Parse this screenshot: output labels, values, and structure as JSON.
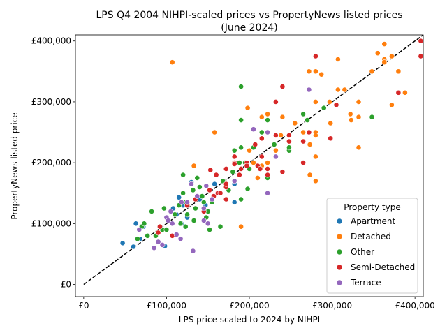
{
  "chart_data": {
    "type": "scatter",
    "title_lines": [
      "LPS Q4 2004 NIHPI-scaled prices vs PropertyNews listed prices",
      "(June 2024)"
    ],
    "xlabel": "LPS price scaled to 2024 by NIHPI",
    "ylabel": "PropertyNews listed price",
    "xlim": [
      -10000,
      410000
    ],
    "ylim": [
      -20000,
      410000
    ],
    "xticks": [
      0,
      100000,
      200000,
      300000,
      400000
    ],
    "yticks": [
      0,
      100000,
      200000,
      300000,
      400000
    ],
    "xtick_labels": [
      "£0",
      "£100,000",
      "£200,000",
      "£300,000",
      "£400,000"
    ],
    "ytick_labels": [
      "£0",
      "£100,000",
      "£200,000",
      "£300,000",
      "£400,000"
    ],
    "reference_line": {
      "style": "dashed",
      "color": "#000000",
      "from": [
        0,
        0
      ],
      "to": [
        410000,
        410000
      ]
    },
    "grid": false,
    "legend": {
      "title": "Property type",
      "placement": "lower-right"
    },
    "series": [
      {
        "name": "Apartment",
        "color": "#1f77b4",
        "points": [
          [
            47000,
            68000
          ],
          [
            60000,
            62000
          ],
          [
            63000,
            100000
          ],
          [
            68000,
            75000
          ],
          [
            72000,
            95000
          ],
          [
            98000,
            63000
          ],
          [
            105000,
            120000
          ],
          [
            108000,
            125000
          ],
          [
            112000,
            115000
          ],
          [
            115000,
            143000
          ],
          [
            118000,
            100000
          ],
          [
            120000,
            130000
          ],
          [
            125000,
            110000
          ],
          [
            130000,
            168000
          ],
          [
            140000,
            140000
          ],
          [
            147000,
            130000
          ],
          [
            155000,
            140000
          ],
          [
            158000,
            165000
          ],
          [
            182000,
            165000
          ],
          [
            182000,
            135000
          ]
        ]
      },
      {
        "name": "Detached",
        "color": "#ff7f0e",
        "points": [
          [
            107000,
            365000
          ],
          [
            133000,
            195000
          ],
          [
            158000,
            250000
          ],
          [
            188000,
            200000
          ],
          [
            190000,
            95000
          ],
          [
            198000,
            290000
          ],
          [
            200000,
            220000
          ],
          [
            205000,
            200000
          ],
          [
            210000,
            175000
          ],
          [
            215000,
            195000
          ],
          [
            215000,
            275000
          ],
          [
            222000,
            280000
          ],
          [
            222000,
            200000
          ],
          [
            232000,
            220000
          ],
          [
            238000,
            245000
          ],
          [
            240000,
            275000
          ],
          [
            255000,
            265000
          ],
          [
            265000,
            250000
          ],
          [
            272000,
            350000
          ],
          [
            273000,
            230000
          ],
          [
            273000,
            180000
          ],
          [
            280000,
            350000
          ],
          [
            280000,
            300000
          ],
          [
            280000,
            250000
          ],
          [
            280000,
            245000
          ],
          [
            280000,
            210000
          ],
          [
            280000,
            170000
          ],
          [
            287000,
            345000
          ],
          [
            297000,
            300000
          ],
          [
            298000,
            265000
          ],
          [
            307000,
            370000
          ],
          [
            307000,
            320000
          ],
          [
            315000,
            320000
          ],
          [
            322000,
            280000
          ],
          [
            323000,
            270000
          ],
          [
            332000,
            300000
          ],
          [
            332000,
            275000
          ],
          [
            332000,
            225000
          ],
          [
            348000,
            350000
          ],
          [
            355000,
            380000
          ],
          [
            363000,
            395000
          ],
          [
            363000,
            370000
          ],
          [
            363000,
            365000
          ],
          [
            372000,
            375000
          ],
          [
            372000,
            295000
          ],
          [
            380000,
            350000
          ],
          [
            388000,
            315000
          ]
        ]
      },
      {
        "name": "Other",
        "color": "#2ca02c",
        "points": [
          [
            65000,
            75000
          ],
          [
            70000,
            95000
          ],
          [
            73000,
            100000
          ],
          [
            77000,
            80000
          ],
          [
            82000,
            120000
          ],
          [
            87000,
            80000
          ],
          [
            90000,
            85000
          ],
          [
            95000,
            90000
          ],
          [
            97000,
            125000
          ],
          [
            100000,
            90000
          ],
          [
            105000,
            120000
          ],
          [
            110000,
            115000
          ],
          [
            115000,
            130000
          ],
          [
            117000,
            100000
          ],
          [
            120000,
            180000
          ],
          [
            120000,
            150000
          ],
          [
            123000,
            95000
          ],
          [
            123000,
            135000
          ],
          [
            125000,
            115000
          ],
          [
            132000,
            155000
          ],
          [
            133000,
            105000
          ],
          [
            135000,
            125000
          ],
          [
            137000,
            175000
          ],
          [
            140000,
            160000
          ],
          [
            143000,
            145000
          ],
          [
            145000,
            135000
          ],
          [
            148000,
            110000
          ],
          [
            150000,
            120000
          ],
          [
            152000,
            90000
          ],
          [
            155000,
            135000
          ],
          [
            162000,
            150000
          ],
          [
            165000,
            95000
          ],
          [
            168000,
            170000
          ],
          [
            175000,
            155000
          ],
          [
            180000,
            185000
          ],
          [
            182000,
            220000
          ],
          [
            188000,
            200000
          ],
          [
            190000,
            325000
          ],
          [
            190000,
            270000
          ],
          [
            190000,
            225000
          ],
          [
            190000,
            140000
          ],
          [
            195000,
            200000
          ],
          [
            198000,
            157000
          ],
          [
            200000,
            190000
          ],
          [
            205000,
            225000
          ],
          [
            210000,
            195000
          ],
          [
            215000,
            250000
          ],
          [
            222000,
            175000
          ],
          [
            222000,
            270000
          ],
          [
            230000,
            230000
          ],
          [
            248000,
            220000
          ],
          [
            248000,
            225000
          ],
          [
            265000,
            280000
          ],
          [
            270000,
            270000
          ],
          [
            290000,
            290000
          ],
          [
            348000,
            275000
          ]
        ]
      },
      {
        "name": "Semi-Detached",
        "color": "#d62728",
        "points": [
          [
            90000,
            85000
          ],
          [
            92000,
            95000
          ],
          [
            107000,
            80000
          ],
          [
            125000,
            130000
          ],
          [
            135000,
            140000
          ],
          [
            145000,
            120000
          ],
          [
            152000,
            155000
          ],
          [
            153000,
            188000
          ],
          [
            157000,
            145000
          ],
          [
            160000,
            180000
          ],
          [
            162000,
            150000
          ],
          [
            165000,
            150000
          ],
          [
            172000,
            140000
          ],
          [
            172000,
            160000
          ],
          [
            172000,
            165000
          ],
          [
            172000,
            190000
          ],
          [
            182000,
            200000
          ],
          [
            182000,
            210000
          ],
          [
            182000,
            198000
          ],
          [
            188000,
            180000
          ],
          [
            190000,
            190000
          ],
          [
            197000,
            200000
          ],
          [
            197000,
            195000
          ],
          [
            207000,
            230000
          ],
          [
            210000,
            195000
          ],
          [
            213000,
            190000
          ],
          [
            215000,
            240000
          ],
          [
            215000,
            210000
          ],
          [
            222000,
            190000
          ],
          [
            222000,
            180000
          ],
          [
            232000,
            300000
          ],
          [
            232000,
            245000
          ],
          [
            240000,
            325000
          ],
          [
            240000,
            185000
          ],
          [
            248000,
            235000
          ],
          [
            248000,
            245000
          ],
          [
            265000,
            235000
          ],
          [
            265000,
            200000
          ],
          [
            272000,
            250000
          ],
          [
            280000,
            375000
          ],
          [
            298000,
            240000
          ],
          [
            305000,
            295000
          ],
          [
            380000,
            315000
          ],
          [
            407000,
            400000
          ],
          [
            407000,
            375000
          ]
        ]
      },
      {
        "name": "Terrace",
        "color": "#9467bd",
        "points": [
          [
            67000,
            90000
          ],
          [
            85000,
            60000
          ],
          [
            90000,
            70000
          ],
          [
            95000,
            65000
          ],
          [
            100000,
            110000
          ],
          [
            102000,
            105000
          ],
          [
            105000,
            120000
          ],
          [
            107000,
            100000
          ],
          [
            112000,
            82000
          ],
          [
            117000,
            75000
          ],
          [
            118000,
            135000
          ],
          [
            125000,
            135000
          ],
          [
            130000,
            165000
          ],
          [
            132000,
            55000
          ],
          [
            137000,
            145000
          ],
          [
            145000,
            105000
          ],
          [
            145000,
            125000
          ],
          [
            148000,
            162000
          ],
          [
            150000,
            100000
          ],
          [
            155000,
            140000
          ],
          [
            182000,
            170000
          ],
          [
            205000,
            255000
          ],
          [
            222000,
            250000
          ],
          [
            222000,
            150000
          ],
          [
            232000,
            210000
          ],
          [
            272000,
            320000
          ]
        ]
      }
    ]
  }
}
